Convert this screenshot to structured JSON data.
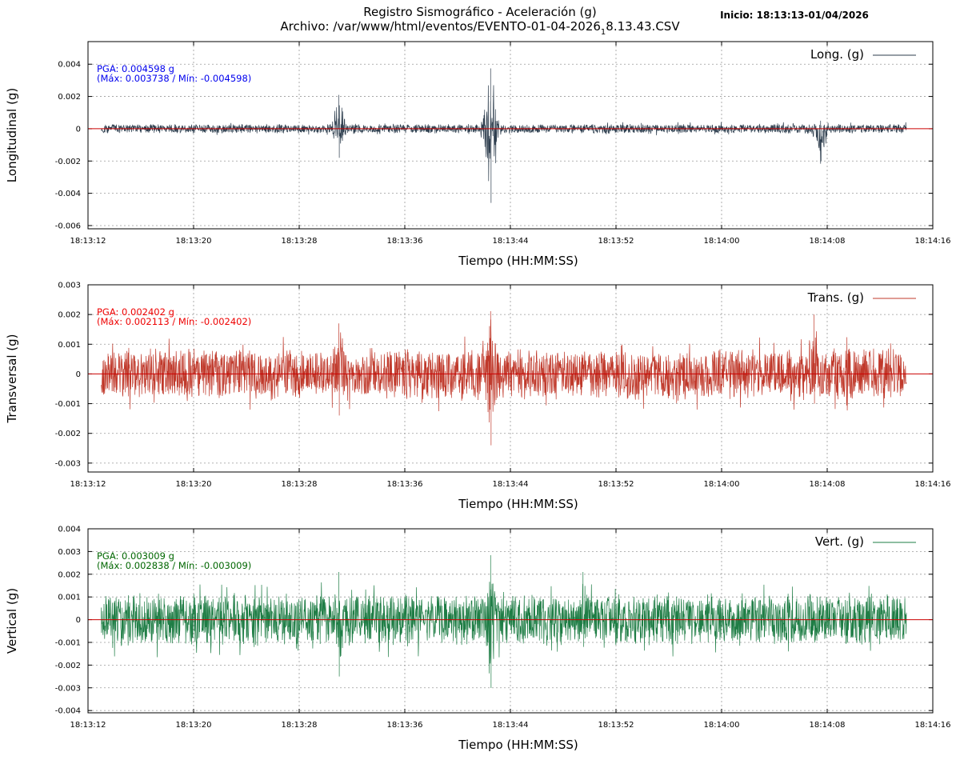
{
  "header": {
    "title_line1": "Registro Sismográfico - Aceleración (g)",
    "title_line2_prefix": "Archivo: /var/www/html/eventos/EVENTO-01-04-2026",
    "title_line2_sub": "1",
    "title_line2_suffix": "8.13.43.CSV",
    "inicio": "Inicio: 18:13:13-01/04/2026"
  },
  "chart_data": [
    {
      "type": "line",
      "channel": "long",
      "legend": "Long. (g)",
      "ylabel": "Longitudinal (g)",
      "xlabel": "Tiempo (HH:MM:SS)",
      "color": "#2e3e4e",
      "pga_line1": "PGA: 0.004598 g",
      "pga_line2": "(Máx: 0.003738 / Mín: -0.004598)",
      "pga_color": "#0000ee",
      "x_range": [
        "18:13:12",
        "18:14:16"
      ],
      "ylim": [
        -0.0062,
        0.0054
      ],
      "y_ticks": [
        -0.006,
        -0.004,
        -0.002,
        0,
        0.002,
        0.004
      ],
      "y_tick_labels": [
        "-0.006",
        "-0.004",
        "-0.002",
        "0",
        "0.002",
        "0.004"
      ],
      "x_tick_labels": [
        "18:13:12",
        "18:13:20",
        "18:13:28",
        "18:13:36",
        "18:13:44",
        "18:13:52",
        "18:14:00",
        "18:14:08",
        "18:14:16"
      ],
      "zero_line_color": "#cc0000",
      "grid": true,
      "legend_position": "top-right",
      "signal": {
        "start": "18:13:13",
        "end": "18:14:14",
        "baseline_amplitude": 0.0003,
        "max": 0.003738,
        "min": -0.004598,
        "bursts": [
          {
            "t": "18:13:31",
            "peak": 0.0021,
            "trough": -0.0018
          },
          {
            "t": "18:13:42.5",
            "peak": 0.003738,
            "trough": -0.004598
          },
          {
            "t": "18:14:07.5",
            "peak": 0.0005,
            "trough": -0.002
          }
        ]
      }
    },
    {
      "type": "line",
      "channel": "trans",
      "legend": "Trans. (g)",
      "ylabel": "Transversal (g)",
      "xlabel": "Tiempo (HH:MM:SS)",
      "color": "#c0392b",
      "pga_line1": "PGA: 0.002402 g",
      "pga_line2": "(Máx: 0.002113 / Mín: -0.002402)",
      "pga_color": "#ee0000",
      "x_range": [
        "18:13:12",
        "18:14:16"
      ],
      "ylim": [
        -0.0033,
        0.003
      ],
      "y_ticks": [
        -0.003,
        -0.002,
        -0.001,
        0,
        0.001,
        0.002,
        0.003
      ],
      "y_tick_labels": [
        "-0.003",
        "-0.002",
        "-0.001",
        "0",
        "0.001",
        "0.002",
        "0.003"
      ],
      "x_tick_labels": [
        "18:13:12",
        "18:13:20",
        "18:13:28",
        "18:13:36",
        "18:13:44",
        "18:13:52",
        "18:14:00",
        "18:14:08",
        "18:14:16"
      ],
      "zero_line_color": "#cc0000",
      "grid": true,
      "legend_position": "top-right",
      "signal": {
        "start": "18:13:13",
        "end": "18:14:14",
        "baseline_amplitude": 0.0009,
        "max": 0.002113,
        "min": -0.002402,
        "bursts": [
          {
            "t": "18:13:31",
            "peak": 0.0017,
            "trough": -0.0014
          },
          {
            "t": "18:13:42.5",
            "peak": 0.002113,
            "trough": -0.002402
          },
          {
            "t": "18:14:07",
            "peak": 0.002,
            "trough": -0.001
          }
        ]
      }
    },
    {
      "type": "line",
      "channel": "vert",
      "legend": "Vert. (g)",
      "ylabel": "Vertical (g)",
      "xlabel": "Tiempo (HH:MM:SS)",
      "color": "#1e7d45",
      "pga_line1": "PGA: 0.003009 g",
      "pga_line2": "(Máx: 0.002838 / Mín: -0.003009)",
      "pga_color": "#006600",
      "x_range": [
        "18:13:12",
        "18:14:16"
      ],
      "ylim": [
        -0.0041,
        0.004
      ],
      "y_ticks": [
        -0.004,
        -0.003,
        -0.002,
        -0.001,
        0,
        0.001,
        0.002,
        0.003,
        0.004
      ],
      "y_tick_labels": [
        "-0.004",
        "-0.003",
        "-0.002",
        "-0.001",
        "0",
        "0.001",
        "0.002",
        "0.003",
        "0.004"
      ],
      "x_tick_labels": [
        "18:13:12",
        "18:13:20",
        "18:13:28",
        "18:13:36",
        "18:13:44",
        "18:13:52",
        "18:14:00",
        "18:14:08",
        "18:14:16"
      ],
      "zero_line_color": "#cc0000",
      "grid": true,
      "legend_position": "top-right",
      "signal": {
        "start": "18:13:13",
        "end": "18:14:14",
        "baseline_amplitude": 0.0012,
        "max": 0.002838,
        "min": -0.003009,
        "bursts": [
          {
            "t": "18:13:31",
            "peak": 0.0021,
            "trough": -0.0025
          },
          {
            "t": "18:13:42.5",
            "peak": 0.002838,
            "trough": -0.003009
          },
          {
            "t": "18:13:49.5",
            "peak": 0.0021,
            "trough": -0.0012
          }
        ]
      }
    }
  ]
}
